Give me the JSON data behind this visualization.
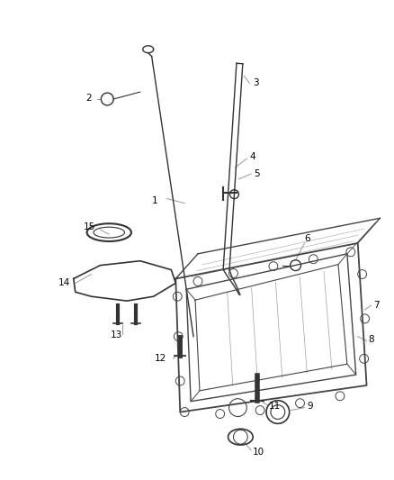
{
  "background_color": "#ffffff",
  "figure_size": [
    4.38,
    5.33
  ],
  "dpi": 100,
  "line_color": "#444444",
  "part_color": "#333333",
  "text_color": "#000000",
  "leader_color": "#999999",
  "label_fontsize": 7.5
}
